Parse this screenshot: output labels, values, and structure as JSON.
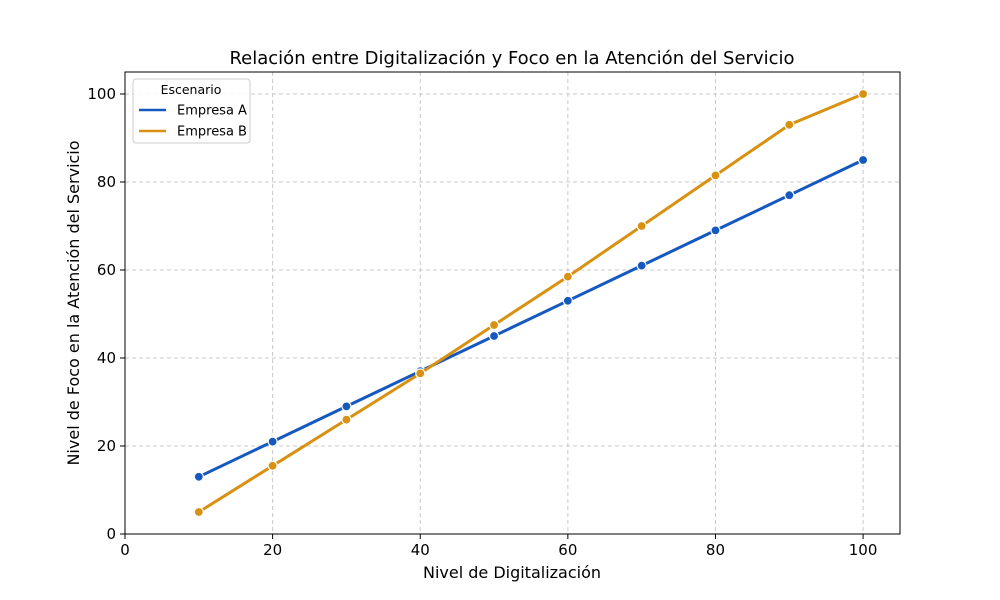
{
  "chart_data": {
    "type": "line",
    "title": "Relación entre Digitalización y Foco en la Atención del Servicio",
    "xlabel": "Nivel de Digitalización",
    "ylabel": "Nivel de Foco en la Atención del Servicio",
    "xlim": [
      0,
      105
    ],
    "ylim": [
      0,
      105
    ],
    "xticks": [
      0,
      20,
      40,
      60,
      80,
      100
    ],
    "yticks": [
      0,
      20,
      40,
      60,
      80,
      100
    ],
    "grid": true,
    "legend": {
      "title": "Escenario",
      "position": "top-left"
    },
    "x": [
      10,
      20,
      30,
      40,
      50,
      60,
      70,
      80,
      90,
      100
    ],
    "series": [
      {
        "name": "Empresa A",
        "color": "#1558c0",
        "values": [
          13,
          21,
          29,
          37,
          45,
          53,
          61,
          69,
          77,
          85
        ]
      },
      {
        "name": "Empresa B",
        "color": "#d89111",
        "values": [
          5,
          15.5,
          26,
          36.5,
          47.5,
          58.5,
          70,
          81.5,
          93,
          100
        ]
      }
    ]
  }
}
